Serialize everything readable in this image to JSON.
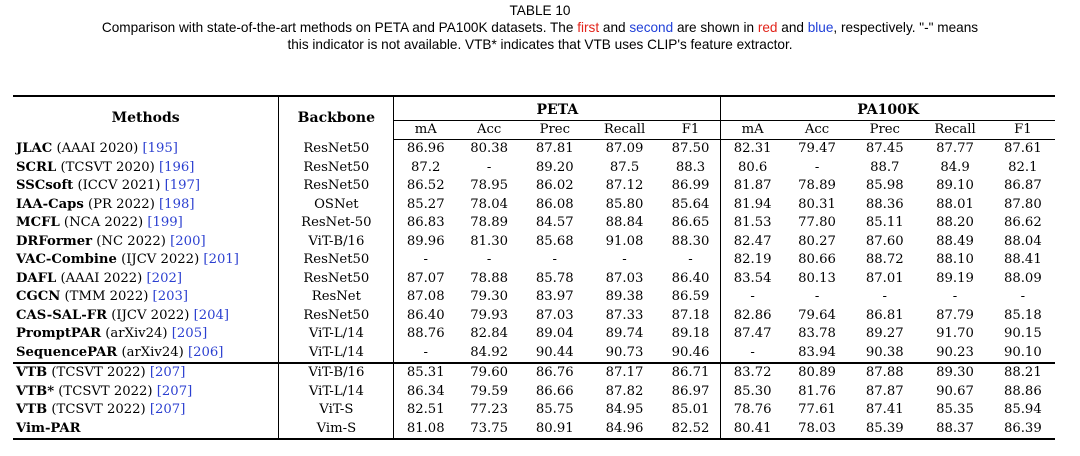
{
  "caption": {
    "label": "TABLE 10",
    "line1_a": "Comparison with state-of-the-art methods on PETA and PA100K datasets. The ",
    "first": "first",
    "and1": " and ",
    "second": "second",
    "line1_b": " are shown in ",
    "red": "red",
    "and2": " and ",
    "blue": "blue",
    "line1_c": ", respectively. \"-\" means",
    "line2": "this indicator is not available. VTB* indicates that VTB uses CLIP's feature extractor."
  },
  "colors": {
    "first": "#e2231a",
    "second": "#1f3fd8",
    "ref_link": "#2b3fd0"
  },
  "header": {
    "methods": "Methods",
    "backbone": "Backbone",
    "peta": "PETA",
    "pa100k": "PA100K",
    "metrics": [
      "mA",
      "Acc",
      "Prec",
      "Recall",
      "F1"
    ]
  },
  "rows": [
    {
      "name": "JLAC",
      "venue": " (AAAI 2020) ",
      "ref": "[195]",
      "backbone": "ResNet50",
      "peta": [
        "86.96",
        "80.38",
        "87.81",
        "87.09",
        "87.50"
      ],
      "pa100k": [
        "82.31",
        "79.47",
        "87.45",
        "87.77",
        "87.61"
      ]
    },
    {
      "name": "SCRL",
      "venue": " (TCSVT 2020) ",
      "ref": "[196]",
      "backbone": "ResNet50",
      "peta": [
        "87.2",
        "-",
        "89.20",
        "87.5",
        "88.3"
      ],
      "pa100k": [
        "80.6",
        "-",
        "88.7",
        "84.9",
        "82.1"
      ]
    },
    {
      "name": "SSCsoft",
      "venue": " (ICCV 2021) ",
      "ref": "[197]",
      "backbone": "ResNet50",
      "peta": [
        "86.52",
        "78.95",
        "86.02",
        "87.12",
        "86.99"
      ],
      "pa100k": [
        "81.87",
        "78.89",
        "85.98",
        "89.10",
        "86.87"
      ]
    },
    {
      "name": "IAA-Caps",
      "venue": " (PR 2022) ",
      "ref": "[198]",
      "backbone": "OSNet",
      "peta": [
        "85.27",
        "78.04",
        "86.08",
        "85.80",
        "85.64"
      ],
      "pa100k": [
        "81.94",
        "80.31",
        "88.36",
        "88.01",
        "87.80"
      ]
    },
    {
      "name": "MCFL",
      "venue": " (NCA 2022) ",
      "ref": "[199]",
      "backbone": "ResNet-50",
      "peta": [
        "86.83",
        "78.89",
        "84.57",
        "88.84",
        "86.65"
      ],
      "pa100k": [
        "81.53",
        "77.80",
        "85.11",
        "88.20",
        "86.62"
      ]
    },
    {
      "name": "DRFormer",
      "venue": " (NC 2022) ",
      "ref": "[200]",
      "backbone": "ViT-B/16",
      "peta": [
        "89.96",
        "81.30",
        "85.68",
        "91.08",
        "88.30"
      ],
      "pa100k": [
        "82.47",
        "80.27",
        "87.60",
        "88.49",
        "88.04"
      ]
    },
    {
      "name": "VAC-Combine",
      "venue": " (IJCV 2022) ",
      "ref": "[201]",
      "backbone": "ResNet50",
      "peta": [
        "-",
        "-",
        "-",
        "-",
        "-"
      ],
      "pa100k": [
        "82.19",
        "80.66",
        "88.72",
        "88.10",
        "88.41"
      ]
    },
    {
      "name": "DAFL",
      "venue": " (AAAI 2022) ",
      "ref": "[202]",
      "backbone": "ResNet50",
      "peta": [
        "87.07",
        "78.88",
        "85.78",
        "87.03",
        "86.40"
      ],
      "pa100k": [
        "83.54",
        "80.13",
        "87.01",
        "89.19",
        "88.09"
      ]
    },
    {
      "name": "CGCN",
      "venue": " (TMM 2022) ",
      "ref": "[203]",
      "backbone": "ResNet",
      "peta": [
        "87.08",
        "79.30",
        "83.97",
        "89.38",
        "86.59"
      ],
      "pa100k": [
        "-",
        "-",
        "-",
        "-",
        "-"
      ]
    },
    {
      "name": "CAS-SAL-FR",
      "venue": " (IJCV 2022) ",
      "ref": "[204]",
      "backbone": "ResNet50",
      "peta": [
        "86.40",
        "79.93",
        "87.03",
        "87.33",
        "87.18"
      ],
      "pa100k": [
        "82.86",
        "79.64",
        "86.81",
        "87.79",
        "85.18"
      ]
    },
    {
      "name": "PromptPAR",
      "venue": " (arXiv24) ",
      "ref": "[205]",
      "backbone": "ViT-L/14",
      "peta": [
        "88.76",
        "82.84",
        "89.04",
        "89.74",
        "89.18"
      ],
      "pa100k": [
        "87.47",
        "83.78",
        "89.27",
        "91.70",
        "90.15"
      ]
    },
    {
      "name": "SequencePAR",
      "venue": " (arXiv24) ",
      "ref": "[206]",
      "backbone": "ViT-L/14",
      "peta": [
        "-",
        "84.92",
        "90.44",
        "90.73",
        "90.46"
      ],
      "pa100k": [
        "-",
        "83.94",
        "90.38",
        "90.23",
        "90.10"
      ]
    },
    {
      "name": "VTB",
      "venue": " (TCSVT 2022) ",
      "ref": "[207]",
      "backbone": "ViT-B/16",
      "peta": [
        "85.31",
        "79.60",
        "86.76",
        "87.17",
        "86.71"
      ],
      "pa100k": [
        "83.72",
        "80.89",
        "87.88",
        "89.30",
        "88.21"
      ]
    },
    {
      "name": "VTB*",
      "venue": " (TCSVT 2022) ",
      "ref": "[207]",
      "backbone": "ViT-L/14",
      "peta": [
        "86.34",
        "79.59",
        "86.66",
        "87.82",
        "86.97"
      ],
      "pa100k": [
        "85.30",
        "81.76",
        "87.87",
        "90.67",
        "88.86"
      ]
    },
    {
      "name": "VTB",
      "venue": " (TCSVT 2022) ",
      "ref": "[207]",
      "backbone": "ViT-S",
      "peta": [
        "82.51",
        "77.23",
        "85.75",
        "84.95",
        "85.01"
      ],
      "pa100k": [
        "78.76",
        "77.61",
        "87.41",
        "85.35",
        "85.94"
      ]
    },
    {
      "name": "Vim-PAR",
      "venue": "",
      "ref": "",
      "backbone": "Vim-S",
      "peta": [
        "81.08",
        "73.75",
        "80.91",
        "84.96",
        "82.52"
      ],
      "pa100k": [
        "80.41",
        "78.03",
        "85.39",
        "88.37",
        "86.39"
      ]
    }
  ]
}
